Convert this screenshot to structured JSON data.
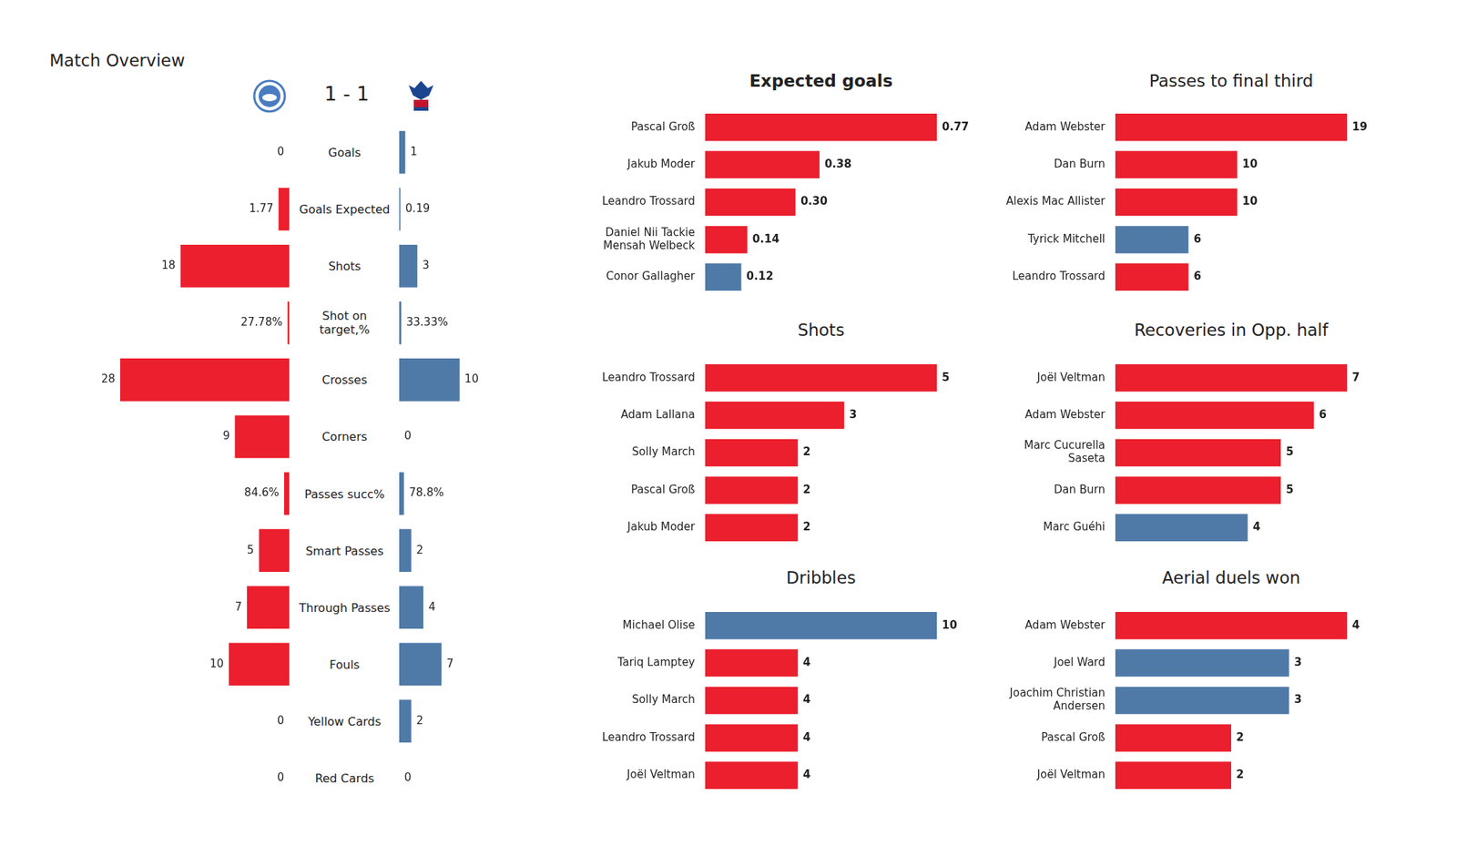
{
  "chart_data": [
    {
      "type": "bar",
      "orientation": "horizontal",
      "title": "Match Overview",
      "score": "1 - 1",
      "categories": [
        "Goals",
        "Goals Expected",
        "Shots",
        [
          "Shot on",
          "target,%"
        ],
        "Crosses",
        "Corners",
        "Passes succ%",
        "Smart Passes",
        "Through Passes",
        "Fouls",
        "Yellow Cards",
        "Red Cards"
      ],
      "series": [
        {
          "color": "#eb1f2d",
          "values": [
            0,
            1.77,
            18,
            0.2778,
            28,
            9,
            0.846,
            5,
            7,
            10,
            0,
            0
          ],
          "value_labels": [
            "0",
            "1.77",
            "18",
            "27.78%",
            "28",
            "9",
            "84.6%",
            "5",
            "7",
            "10",
            "0",
            "0"
          ]
        },
        {
          "color": "#4f7aa8",
          "values": [
            1,
            0.19,
            3,
            0.3333,
            10,
            0,
            0.788,
            2,
            4,
            7,
            2,
            0
          ],
          "value_labels": [
            "1",
            "0.19",
            "3",
            "33.33%",
            "10",
            "0",
            "78.8%",
            "2",
            "4",
            "7",
            "2",
            "0"
          ]
        }
      ],
      "xlim": [
        0,
        28
      ],
      "data_labels": true,
      "tick_labels": "y"
    },
    {
      "type": "bar",
      "orientation": "horizontal",
      "title": "Expected goals",
      "categories": [
        "Pascal Groß",
        "Jakub Moder",
        "Leandro Trossard",
        [
          "Daniel Nii Tackie",
          "Mensah Welbeck"
        ],
        "Conor Gallagher"
      ],
      "values": [
        0.77,
        0.38,
        0.3,
        0.14,
        0.12
      ],
      "value_labels": [
        "0.77",
        "0.38",
        "0.30",
        "0.14",
        "0.12"
      ],
      "colors": [
        "#eb1f2d",
        "#eb1f2d",
        "#eb1f2d",
        "#eb1f2d",
        "#4f7aa8"
      ],
      "xlim": [
        0,
        0.77
      ],
      "data_labels": true,
      "tick_labels": "y"
    },
    {
      "type": "bar",
      "orientation": "horizontal",
      "title": "Passes to final third",
      "categories": [
        "Adam Webster",
        "Dan Burn",
        "Alexis Mac Allister",
        "Tyrick Mitchell",
        "Leandro Trossard"
      ],
      "values": [
        19,
        10,
        10,
        6,
        6
      ],
      "colors": [
        "#eb1f2d",
        "#eb1f2d",
        "#eb1f2d",
        "#4f7aa8",
        "#eb1f2d"
      ],
      "xlim": [
        0,
        19
      ],
      "data_labels": true,
      "tick_labels": "y"
    },
    {
      "type": "bar",
      "orientation": "horizontal",
      "title": "Shots",
      "categories": [
        "Leandro Trossard",
        "Adam Lallana",
        "Solly March",
        "Pascal Groß",
        "Jakub Moder"
      ],
      "values": [
        5,
        3,
        2,
        2,
        2
      ],
      "colors": [
        "#eb1f2d",
        "#eb1f2d",
        "#eb1f2d",
        "#eb1f2d",
        "#eb1f2d"
      ],
      "xlim": [
        0,
        5
      ],
      "data_labels": true,
      "tick_labels": "y"
    },
    {
      "type": "bar",
      "orientation": "horizontal",
      "title": "Recoveries in Opp. half",
      "categories": [
        "Joël Veltman",
        "Adam Webster",
        [
          "Marc Cucurella",
          "Saseta"
        ],
        "Dan Burn",
        "Marc Guéhi"
      ],
      "values": [
        7,
        6,
        5,
        5,
        4
      ],
      "colors": [
        "#eb1f2d",
        "#eb1f2d",
        "#eb1f2d",
        "#eb1f2d",
        "#4f7aa8"
      ],
      "xlim": [
        0,
        7
      ],
      "data_labels": true,
      "tick_labels": "y"
    },
    {
      "type": "bar",
      "orientation": "horizontal",
      "title": "Dribbles",
      "categories": [
        "Michael Olise",
        "Tariq Lamptey",
        "Solly March",
        "Leandro Trossard",
        "Joël Veltman"
      ],
      "values": [
        10,
        4,
        4,
        4,
        4
      ],
      "colors": [
        "#4f7aa8",
        "#eb1f2d",
        "#eb1f2d",
        "#eb1f2d",
        "#eb1f2d"
      ],
      "xlim": [
        0,
        10
      ],
      "data_labels": true,
      "tick_labels": "y"
    },
    {
      "type": "bar",
      "orientation": "horizontal",
      "title": "Aerial duels won",
      "categories": [
        "Adam Webster",
        "Joel Ward",
        [
          "Joachim Christian",
          "Andersen"
        ],
        "Pascal Groß",
        "Joël Veltman"
      ],
      "values": [
        4,
        3,
        3,
        2,
        2
      ],
      "colors": [
        "#eb1f2d",
        "#4f7aa8",
        "#4f7aa8",
        "#eb1f2d",
        "#eb1f2d"
      ],
      "xlim": [
        0,
        4
      ],
      "data_labels": true,
      "tick_labels": "y"
    }
  ]
}
